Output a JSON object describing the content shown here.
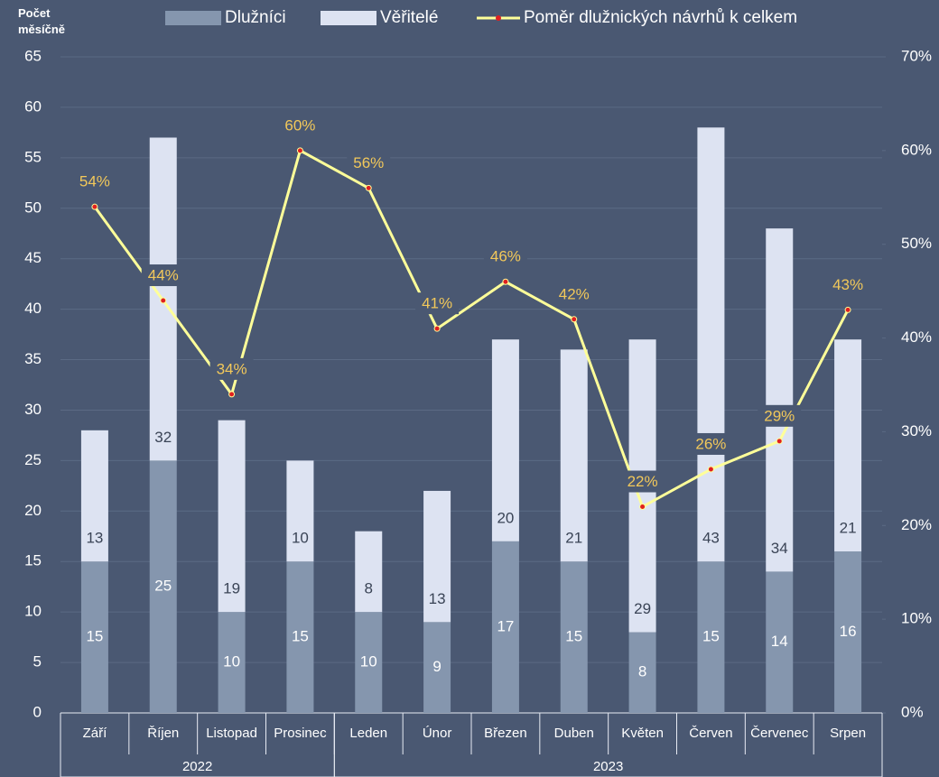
{
  "chart_data": {
    "type": "bar",
    "stacked": true,
    "y_label": "Počet měsíčně",
    "categories": [
      "Září",
      "Říjen",
      "Listopad",
      "Prosinec",
      "Leden",
      "Únor",
      "Březen",
      "Duben",
      "Květen",
      "Červen",
      "Červenec",
      "Srpen"
    ],
    "groups": [
      {
        "label": "2022",
        "size": 4
      },
      {
        "label": "2023",
        "size": 8
      }
    ],
    "series": [
      {
        "name": "Dlužníci",
        "color": "#8596ae",
        "values": [
          15,
          25,
          10,
          15,
          10,
          9,
          17,
          15,
          8,
          15,
          14,
          16
        ]
      },
      {
        "name": "Věřitelé",
        "color": "#dde3f2",
        "values": [
          13,
          32,
          19,
          10,
          8,
          13,
          20,
          21,
          29,
          43,
          34,
          21
        ]
      },
      {
        "name": "Poměr dlužnických návrhů k celkem",
        "type": "line",
        "axis": "y2",
        "color": "#ffff99",
        "values": [
          54,
          44,
          34,
          60,
          56,
          41,
          46,
          42,
          22,
          26,
          29,
          43
        ],
        "value_labels": [
          "54%",
          "44%",
          "34%",
          "60%",
          "56%",
          "41%",
          "46%",
          "42%",
          "22%",
          "26%",
          "29%",
          "43%"
        ]
      }
    ],
    "ylim": [
      0,
      65
    ],
    "yticks": [
      0,
      5,
      10,
      15,
      20,
      25,
      30,
      35,
      40,
      45,
      50,
      55,
      60,
      65
    ],
    "y2lim": [
      0,
      70
    ],
    "y2ticks": [
      {
        "value": 0,
        "label": "0%"
      },
      {
        "value": 10,
        "label": "10%"
      },
      {
        "value": 20,
        "label": "20%"
      },
      {
        "value": 30,
        "label": "30%"
      },
      {
        "value": 40,
        "label": "40%"
      },
      {
        "value": 50,
        "label": "50%"
      },
      {
        "value": 60,
        "label": "60%"
      },
      {
        "value": 70,
        "label": "70%"
      }
    ],
    "grid": true,
    "legend": "top"
  }
}
